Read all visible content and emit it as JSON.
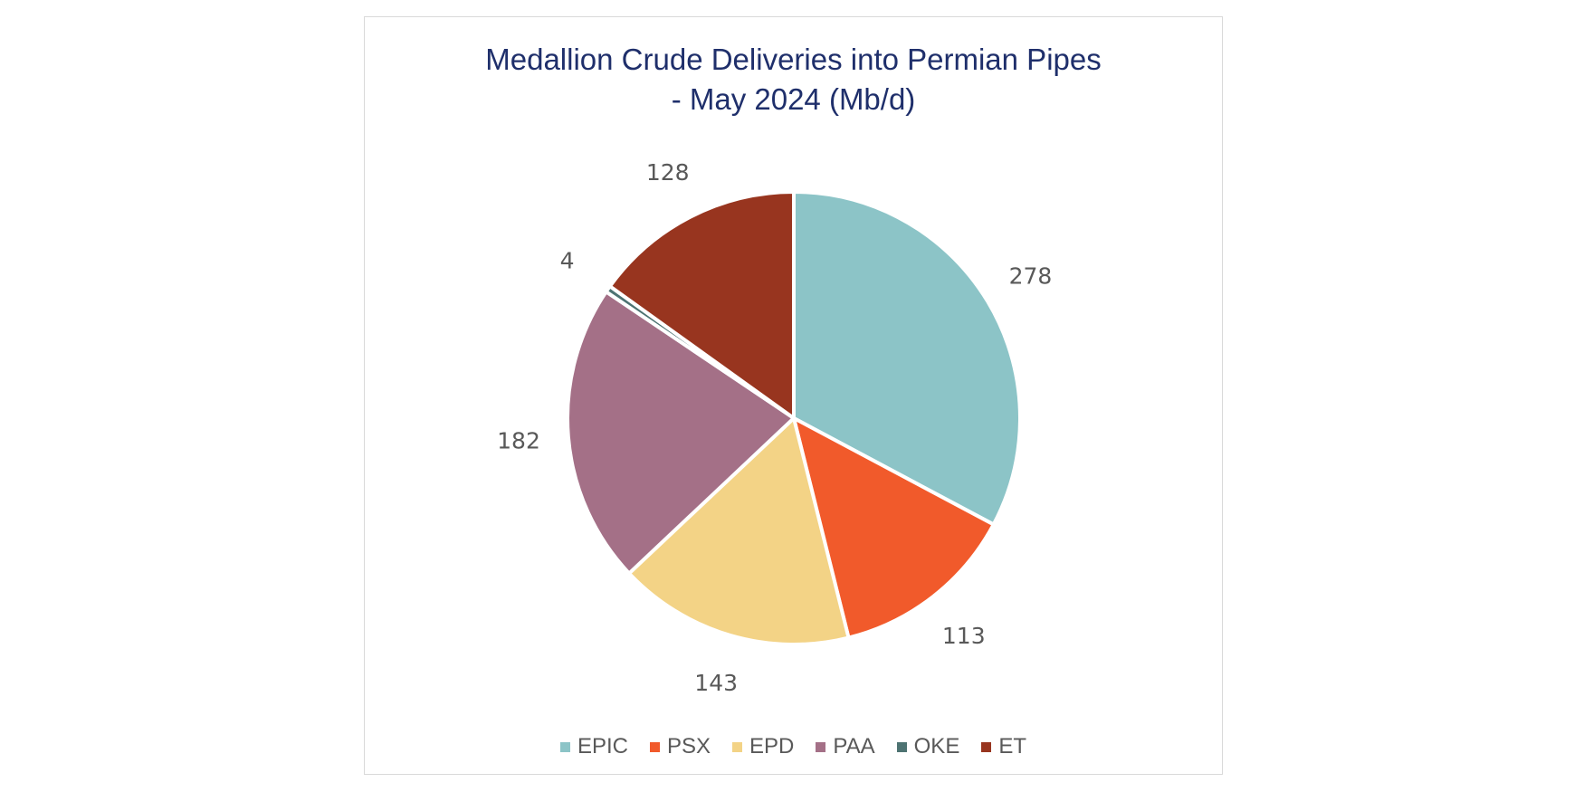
{
  "chart_data": {
    "type": "pie",
    "title_lines": [
      "Medallion Crude Deliveries into Permian Pipes",
      "- May 2024 (Mb/d)"
    ],
    "categories": [
      "EPIC",
      "PSX",
      "EPD",
      "PAA",
      "OKE",
      "ET"
    ],
    "values": [
      278,
      113,
      143,
      182,
      4,
      128
    ],
    "data_labels": [
      "278",
      "113",
      "143",
      "182",
      "4",
      "128"
    ],
    "colors": [
      "#8cc4c7",
      "#f15a2b",
      "#f3d386",
      "#a47087",
      "#4d7372",
      "#98351f"
    ],
    "legend_position": "bottom"
  }
}
